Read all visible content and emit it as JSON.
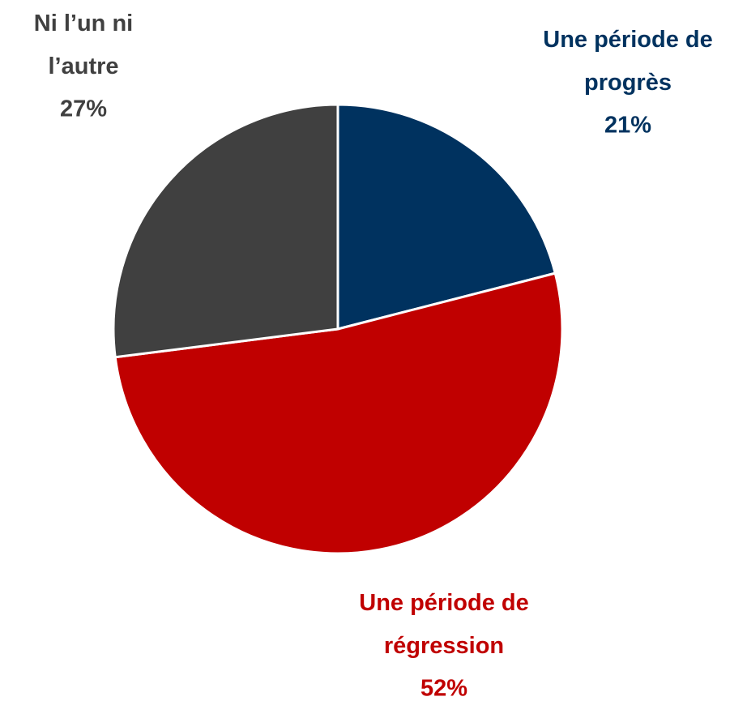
{
  "chart_data": {
    "type": "pie",
    "categories": [
      "Une période de progrès",
      "Une période de régression",
      "Ni l’un ni l’autre"
    ],
    "values": [
      21,
      52,
      27
    ],
    "value_labels": [
      "21%",
      "52%",
      "27%"
    ],
    "colors": [
      "#00325f",
      "#c00000",
      "#404040"
    ]
  }
}
